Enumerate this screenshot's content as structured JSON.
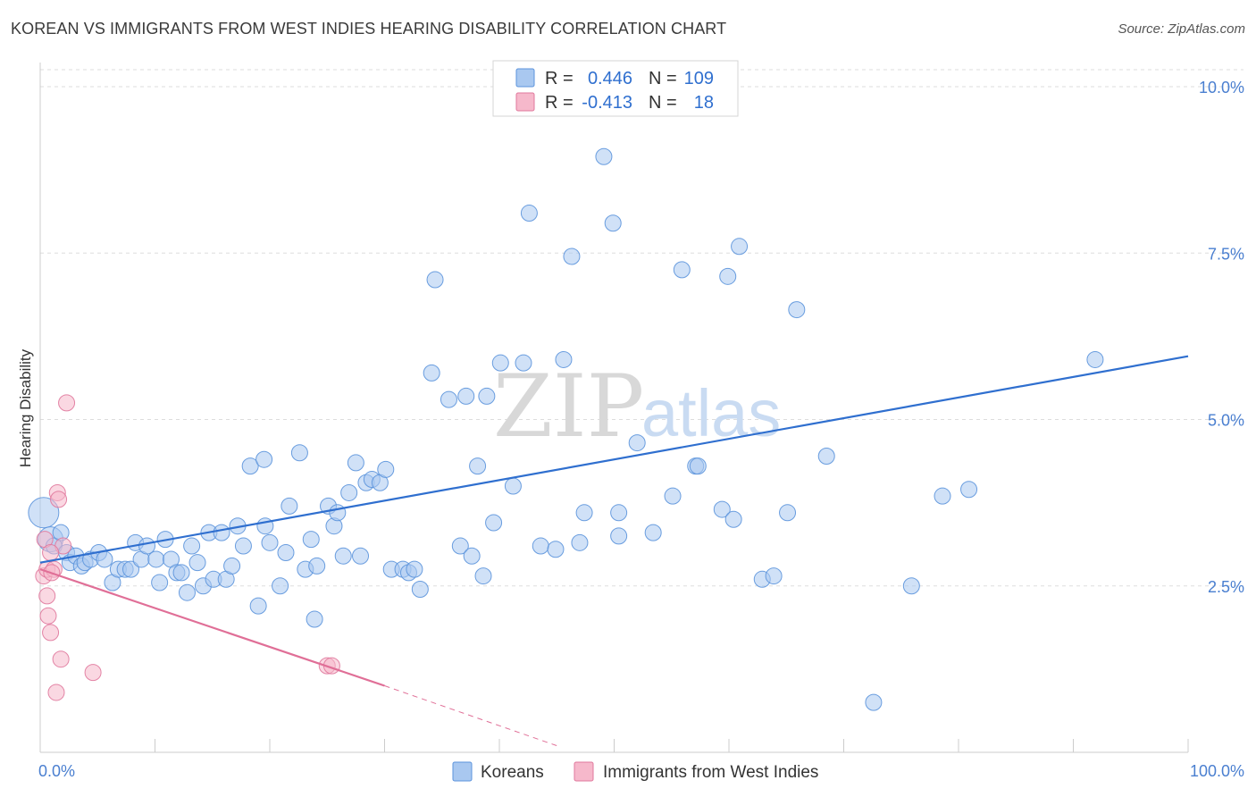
{
  "title": "KOREAN VS IMMIGRANTS FROM WEST INDIES HEARING DISABILITY CORRELATION CHART",
  "source": "Source: ZipAtlas.com",
  "watermark": {
    "zip": "ZIP",
    "atlas": "atlas"
  },
  "legend": {
    "r_label": "R =",
    "n_label": "N =",
    "rows": [
      {
        "r": "0.446",
        "n": "109",
        "color": "#a9c8f0",
        "edge": "#5b93dc"
      },
      {
        "r": "-0.413",
        "n": "18",
        "color": "#f6b8cb",
        "edge": "#e0789c"
      }
    ]
  },
  "bottom_legend": [
    {
      "label": "Koreans",
      "color": "#a9c8f0",
      "edge": "#5b93dc"
    },
    {
      "label": "Immigrants from West Indies",
      "color": "#f6b8cb",
      "edge": "#e0789c"
    }
  ],
  "chart_data": {
    "type": "scatter",
    "title": "KOREAN VS IMMIGRANTS FROM WEST INDIES HEARING DISABILITY CORRELATION CHART",
    "xlabel": "",
    "ylabel": "Hearing Disability",
    "xlim": [
      0,
      100
    ],
    "ylim": [
      0,
      10.5
    ],
    "x_tick_labels": [
      "0.0%",
      "100.0%"
    ],
    "y_ticks": [
      2.5,
      5.0,
      7.5,
      10.0
    ],
    "y_tick_labels": [
      "2.5%",
      "5.0%",
      "7.5%",
      "10.0%"
    ],
    "grid": "horizontal dashed",
    "legend_position": "top-center",
    "series": [
      {
        "name": "Koreans",
        "color": "#a9c8f0",
        "edge": "#5b93dc",
        "trend": {
          "x": [
            0,
            100
          ],
          "y": [
            2.85,
            5.95
          ],
          "color": "#2f6fcf"
        },
        "points": [
          [
            0.3,
            3.6
          ],
          [
            0.9,
            3.2
          ],
          [
            1.2,
            3.1
          ],
          [
            1.8,
            3.3
          ],
          [
            2.3,
            3.0
          ],
          [
            2.6,
            2.85
          ],
          [
            3.1,
            2.95
          ],
          [
            3.6,
            2.8
          ],
          [
            3.9,
            2.85
          ],
          [
            4.4,
            2.9
          ],
          [
            5.1,
            3.0
          ],
          [
            5.6,
            2.9
          ],
          [
            6.3,
            2.55
          ],
          [
            6.8,
            2.75
          ],
          [
            7.4,
            2.75
          ],
          [
            7.9,
            2.75
          ],
          [
            8.3,
            3.15
          ],
          [
            8.8,
            2.9
          ],
          [
            9.3,
            3.1
          ],
          [
            10.1,
            2.9
          ],
          [
            10.4,
            2.55
          ],
          [
            10.9,
            3.2
          ],
          [
            11.4,
            2.9
          ],
          [
            11.9,
            2.7
          ],
          [
            12.3,
            2.7
          ],
          [
            12.8,
            2.4
          ],
          [
            13.2,
            3.1
          ],
          [
            13.7,
            2.85
          ],
          [
            14.2,
            2.5
          ],
          [
            14.7,
            3.3
          ],
          [
            15.1,
            2.6
          ],
          [
            15.8,
            3.3
          ],
          [
            16.2,
            2.6
          ],
          [
            16.7,
            2.8
          ],
          [
            17.2,
            3.4
          ],
          [
            17.7,
            3.1
          ],
          [
            18.3,
            4.3
          ],
          [
            19.0,
            2.2
          ],
          [
            19.5,
            4.4
          ],
          [
            19.6,
            3.4
          ],
          [
            20.0,
            3.15
          ],
          [
            20.9,
            2.5
          ],
          [
            21.4,
            3.0
          ],
          [
            21.7,
            3.7
          ],
          [
            22.6,
            4.5
          ],
          [
            23.1,
            2.75
          ],
          [
            23.6,
            3.2
          ],
          [
            23.9,
            2.0
          ],
          [
            24.1,
            2.8
          ],
          [
            25.1,
            3.7
          ],
          [
            25.6,
            3.4
          ],
          [
            25.9,
            3.6
          ],
          [
            26.4,
            2.95
          ],
          [
            26.9,
            3.9
          ],
          [
            27.5,
            4.35
          ],
          [
            27.9,
            2.95
          ],
          [
            28.4,
            4.05
          ],
          [
            28.9,
            4.1
          ],
          [
            29.6,
            4.05
          ],
          [
            30.1,
            4.25
          ],
          [
            30.6,
            2.75
          ],
          [
            31.6,
            2.75
          ],
          [
            32.1,
            2.7
          ],
          [
            32.6,
            2.75
          ],
          [
            33.1,
            2.45
          ],
          [
            34.1,
            5.7
          ],
          [
            34.4,
            7.1
          ],
          [
            35.6,
            5.3
          ],
          [
            36.6,
            3.1
          ],
          [
            37.1,
            5.35
          ],
          [
            37.6,
            2.95
          ],
          [
            38.1,
            4.3
          ],
          [
            38.6,
            2.65
          ],
          [
            38.9,
            5.35
          ],
          [
            39.5,
            3.45
          ],
          [
            40.1,
            5.85
          ],
          [
            41.2,
            4.0
          ],
          [
            42.1,
            5.85
          ],
          [
            42.6,
            8.1
          ],
          [
            43.6,
            3.1
          ],
          [
            44.9,
            3.05
          ],
          [
            45.6,
            5.9
          ],
          [
            46.3,
            7.45
          ],
          [
            47.0,
            3.15
          ],
          [
            47.4,
            3.6
          ],
          [
            49.1,
            8.95
          ],
          [
            49.9,
            7.95
          ],
          [
            50.4,
            3.6
          ],
          [
            50.4,
            3.25
          ],
          [
            52.0,
            4.65
          ],
          [
            53.4,
            3.3
          ],
          [
            55.1,
            3.85
          ],
          [
            55.9,
            7.25
          ],
          [
            57.1,
            4.3
          ],
          [
            57.3,
            4.3
          ],
          [
            59.4,
            3.65
          ],
          [
            59.9,
            7.15
          ],
          [
            60.4,
            3.5
          ],
          [
            60.9,
            7.6
          ],
          [
            62.9,
            2.6
          ],
          [
            63.9,
            2.65
          ],
          [
            65.1,
            3.6
          ],
          [
            65.9,
            6.65
          ],
          [
            68.5,
            4.45
          ],
          [
            72.6,
            0.75
          ],
          [
            75.9,
            2.5
          ],
          [
            78.6,
            3.85
          ],
          [
            80.9,
            3.95
          ],
          [
            91.9,
            5.9
          ]
        ]
      },
      {
        "name": "Immigrants from West Indies",
        "color": "#f6b8cb",
        "edge": "#e0789c",
        "trend": {
          "x": [
            0,
            30
          ],
          "y": [
            2.75,
            1.0
          ],
          "color": "#e06f97",
          "dashed_to": [
            45,
            0.1
          ]
        },
        "points": [
          [
            0.3,
            2.65
          ],
          [
            0.4,
            3.2
          ],
          [
            0.6,
            2.75
          ],
          [
            0.6,
            2.35
          ],
          [
            0.7,
            2.05
          ],
          [
            0.9,
            1.8
          ],
          [
            1.2,
            2.75
          ],
          [
            1.5,
            3.9
          ],
          [
            1.6,
            3.8
          ],
          [
            1.8,
            1.4
          ],
          [
            2.0,
            3.1
          ],
          [
            2.3,
            5.25
          ],
          [
            1.4,
            0.9
          ],
          [
            4.6,
            1.2
          ],
          [
            25.0,
            1.3
          ],
          [
            25.4,
            1.3
          ],
          [
            1.0,
            2.7
          ],
          [
            0.9,
            3.0
          ]
        ]
      }
    ]
  }
}
